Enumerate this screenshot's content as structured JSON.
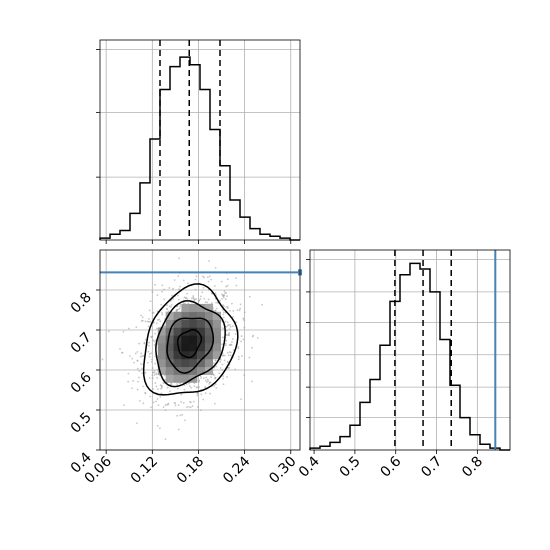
{
  "chart_data": [
    {
      "panel": "histogram-param-1",
      "type": "step-histogram",
      "title": "",
      "xlabel": "",
      "ylabel": "",
      "xlim": [
        0.052,
        0.312
      ],
      "ylim": [
        0,
        1.05
      ],
      "grid": true,
      "bin_edges": [
        0.052,
        0.065,
        0.078,
        0.091,
        0.104,
        0.117,
        0.13,
        0.143,
        0.156,
        0.169,
        0.182,
        0.195,
        0.208,
        0.221,
        0.234,
        0.247,
        0.26,
        0.273,
        0.286,
        0.299,
        0.312
      ],
      "counts": [
        0.01,
        0.03,
        0.05,
        0.14,
        0.3,
        0.53,
        0.79,
        0.91,
        0.96,
        0.92,
        0.79,
        0.58,
        0.39,
        0.21,
        0.12,
        0.06,
        0.03,
        0.02,
        0.01,
        0.0
      ],
      "quantile_lines": [
        0.13,
        0.168,
        0.208
      ],
      "y_tick_values": [
        0.33,
        0.67,
        1.0
      ]
    },
    {
      "panel": "histogram-param-2",
      "type": "step-histogram",
      "title": "",
      "xlabel": "",
      "ylabel": "",
      "xlim": [
        0.39,
        0.88
      ],
      "ylim": [
        0,
        1.05
      ],
      "grid": true,
      "bin_edges": [
        0.39,
        0.4145,
        0.439,
        0.4635,
        0.488,
        0.5125,
        0.537,
        0.5615,
        0.586,
        0.6105,
        0.635,
        0.6595,
        0.684,
        0.7085,
        0.733,
        0.7575,
        0.782,
        0.8065,
        0.831,
        0.8555,
        0.88
      ],
      "counts": [
        0.01,
        0.02,
        0.04,
        0.07,
        0.13,
        0.25,
        0.37,
        0.55,
        0.78,
        0.92,
        0.98,
        0.95,
        0.83,
        0.58,
        0.34,
        0.17,
        0.08,
        0.03,
        0.01,
        0.0
      ],
      "quantile_lines": [
        0.598,
        0.667,
        0.736
      ],
      "truth_line": 0.844,
      "truth_color": "#4682b4",
      "y_tick_values": [
        0.17,
        0.33,
        0.5,
        0.67,
        0.83,
        1.0
      ]
    },
    {
      "panel": "joint-2d-param1-vs-param2",
      "type": "contour-heatmap-scatter",
      "title": "",
      "xlabel": "",
      "ylabel": "",
      "xlim": [
        0.052,
        0.312
      ],
      "ylim": [
        0.4,
        0.9
      ],
      "x_ticks": [
        "0.06",
        "0.12",
        "0.18",
        "0.24",
        "0.30"
      ],
      "y_ticks": [
        "0.4",
        "0.5",
        "0.6",
        "0.7",
        "0.8"
      ],
      "grid": true,
      "center": [
        0.168,
        0.667
      ],
      "spread": [
        0.03,
        0.068
      ],
      "correlation": 0.2,
      "truth_line_y": 0.844,
      "truth_color": "#4682b4",
      "contour_sigmas": [
        0.5,
        1.0,
        1.5,
        2.0
      ]
    }
  ]
}
